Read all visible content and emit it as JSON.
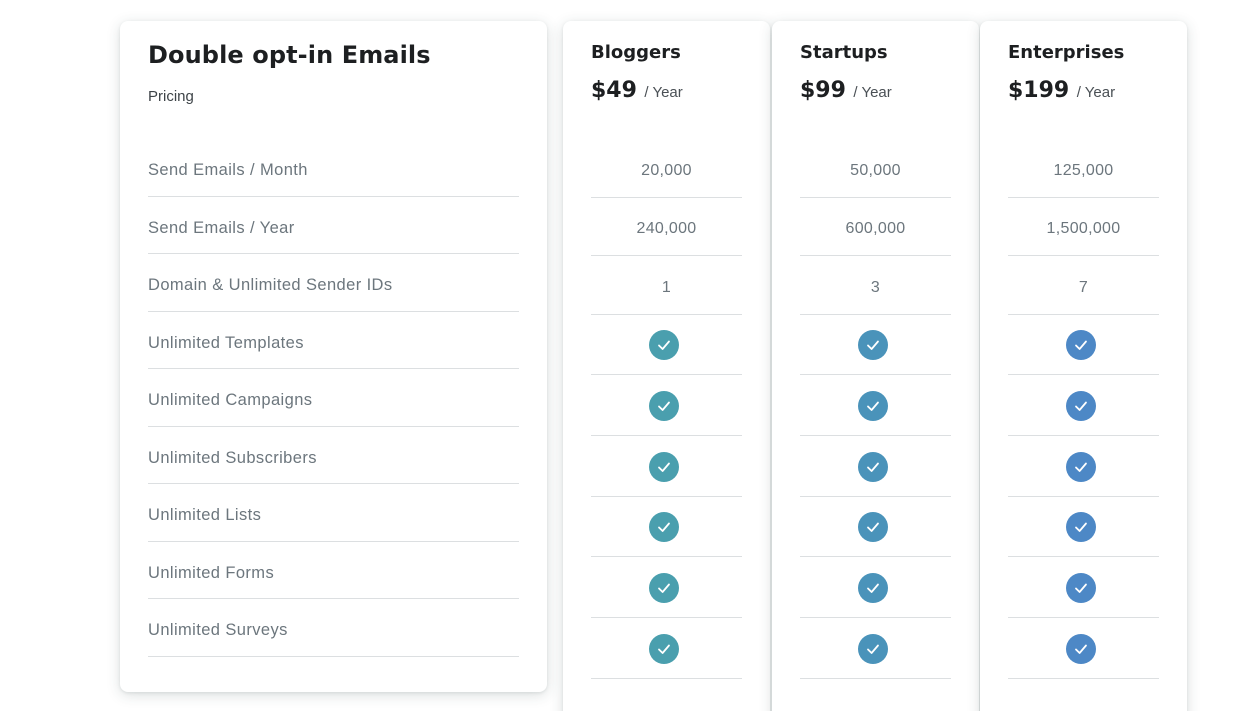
{
  "features_card": {
    "title": "Double opt-in Emails",
    "subtitle": "Pricing",
    "features": [
      "Send Emails / Month",
      "Send Emails / Year",
      "Domain & Unlimited Sender IDs",
      "Unlimited Templates",
      "Unlimited Campaigns",
      "Unlimited Subscribers",
      "Unlimited Lists",
      "Unlimited Forms",
      "Unlimited Surveys"
    ]
  },
  "plans": [
    {
      "name": "Bloggers",
      "price": "$49",
      "period": "/ Year",
      "check_color": "#4a9fae",
      "values": [
        "20,000",
        "240,000",
        "1"
      ],
      "checks": [
        true,
        true,
        true,
        true,
        true,
        true
      ]
    },
    {
      "name": "Startups",
      "price": "$99",
      "period": "/ Year",
      "check_color": "#4a93ba",
      "values": [
        "50,000",
        "600,000",
        "3"
      ],
      "checks": [
        true,
        true,
        true,
        true,
        true,
        true
      ]
    },
    {
      "name": "Enterprises",
      "price": "$199",
      "period": "/ Year",
      "check_color": "#4d88c6",
      "values": [
        "125,000",
        "1,500,000",
        "7"
      ],
      "checks": [
        true,
        true,
        true,
        true,
        true,
        true
      ]
    }
  ],
  "icons": {
    "check": "check-circle-icon"
  }
}
